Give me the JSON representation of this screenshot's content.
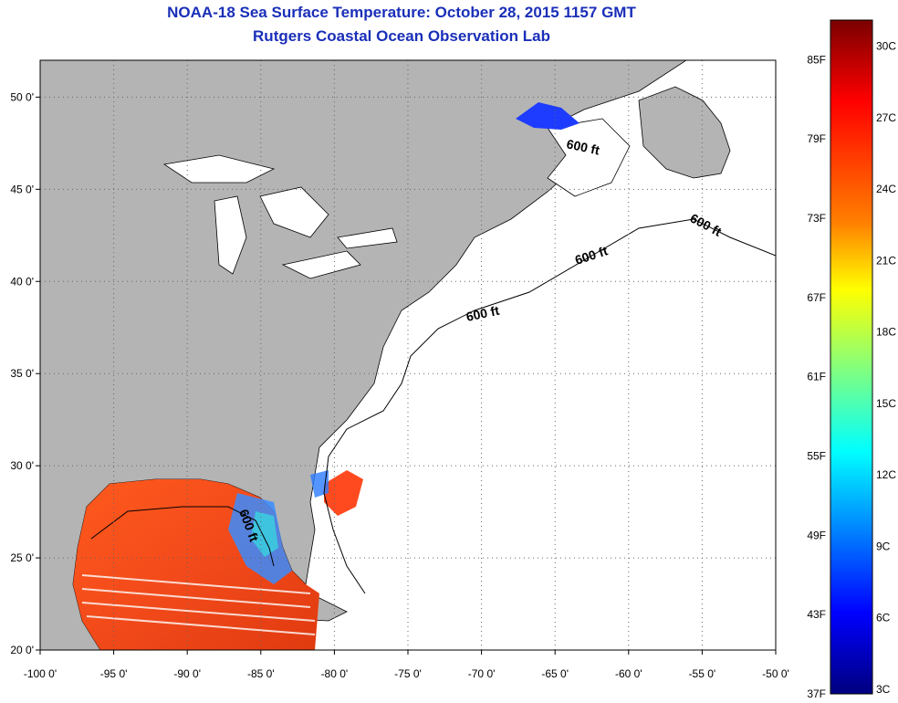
{
  "title_line1": "NOAA-18 Sea Surface Temperature:  October 28, 2015 1157 GMT",
  "title_line2": "Rutgers Coastal Ocean Observation Lab",
  "map": {
    "lon_range": [
      -100,
      -50
    ],
    "lat_range": [
      20,
      52
    ],
    "lon_ticks": [
      "-100 0'",
      "-95 0'",
      "-90 0'",
      "-85 0'",
      "-80 0'",
      "-75 0'",
      "-70 0'",
      "-65 0'",
      "-60 0'",
      "-55 0'",
      "-50 0'"
    ],
    "lat_ticks": [
      "20 0'",
      "25 0'",
      "30 0'",
      "35 0'",
      "40 0'",
      "45 0'",
      "50 0'"
    ],
    "contour_labels": [
      "600 ft",
      "600 ft",
      "600 ft",
      "600 ft",
      "600 ft"
    ],
    "land_color": "#b4b4b4",
    "ocean_color": "#ffffff"
  },
  "colorbar": {
    "fahrenheit_labels": [
      "85F",
      "79F",
      "73F",
      "67F",
      "61F",
      "55F",
      "49F",
      "43F",
      "37F"
    ],
    "celsius_labels": [
      "30C",
      "27C",
      "24C",
      "21C",
      "18C",
      "15C",
      "12C",
      "9C",
      "6C",
      "3C"
    ],
    "colors": [
      "#7a0000",
      "#ff0000",
      "#ff8000",
      "#ffff00",
      "#80ff80",
      "#00ffff",
      "#0080ff",
      "#0000ff",
      "#00007f"
    ]
  }
}
